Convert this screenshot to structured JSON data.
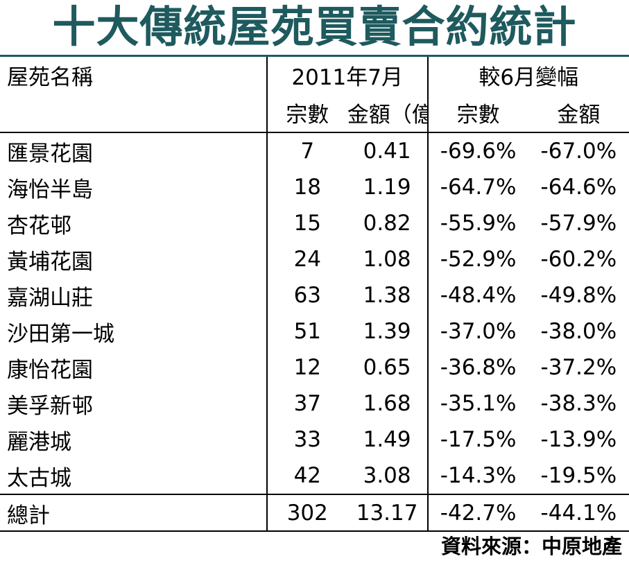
{
  "title": "十大傳統屋苑買賣合約統計",
  "headers": {
    "name": "屋苑名稱",
    "period": "2011年7月",
    "change": "較6月變幅",
    "count": "宗數",
    "amount": "金額（億元）",
    "change_count": "宗數",
    "change_amount": "金額"
  },
  "chart_data": {
    "type": "table",
    "title": "十大傳統屋苑買賣合約統計",
    "columns": [
      "屋苑名稱",
      "宗數",
      "金額（億元）",
      "宗數變幅",
      "金額變幅"
    ],
    "rows": [
      {
        "name": "匯景花園",
        "count": "7",
        "amount": "0.41",
        "change_count": "-69.6%",
        "change_amount": "-67.0%"
      },
      {
        "name": "海怡半島",
        "count": "18",
        "amount": "1.19",
        "change_count": "-64.7%",
        "change_amount": "-64.6%"
      },
      {
        "name": "杏花邨",
        "count": "15",
        "amount": "0.82",
        "change_count": "-55.9%",
        "change_amount": "-57.9%"
      },
      {
        "name": "黃埔花園",
        "count": "24",
        "amount": "1.08",
        "change_count": "-52.9%",
        "change_amount": "-60.2%"
      },
      {
        "name": "嘉湖山莊",
        "count": "63",
        "amount": "1.38",
        "change_count": "-48.4%",
        "change_amount": "-49.8%"
      },
      {
        "name": "沙田第一城",
        "count": "51",
        "amount": "1.39",
        "change_count": "-37.0%",
        "change_amount": "-38.0%"
      },
      {
        "name": "康怡花園",
        "count": "12",
        "amount": "0.65",
        "change_count": "-36.8%",
        "change_amount": "-37.2%"
      },
      {
        "name": "美孚新邨",
        "count": "37",
        "amount": "1.68",
        "change_count": "-35.1%",
        "change_amount": "-38.3%"
      },
      {
        "name": "麗港城",
        "count": "33",
        "amount": "1.49",
        "change_count": "-17.5%",
        "change_amount": "-13.9%"
      },
      {
        "name": "太古城",
        "count": "42",
        "amount": "3.08",
        "change_count": "-14.3%",
        "change_amount": "-19.5%"
      }
    ],
    "total": {
      "name": "總計",
      "count": "302",
      "amount": "13.17",
      "change_count": "-42.7%",
      "change_amount": "-44.1%"
    }
  },
  "source": "資料來源：中原地產"
}
